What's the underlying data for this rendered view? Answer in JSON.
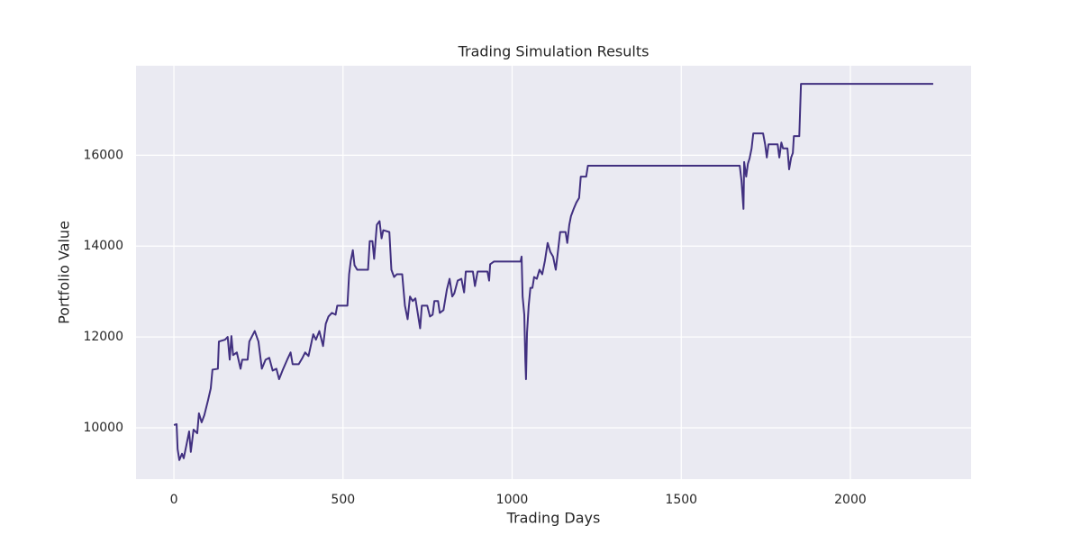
{
  "chart_data": {
    "type": "line",
    "title": "Trading Simulation Results",
    "x_label": "Trading Days",
    "y_label": "Portfolio Value",
    "x": [
      0,
      8,
      11,
      16,
      24,
      29,
      37,
      45,
      50,
      58,
      69,
      74,
      82,
      90,
      101,
      109,
      114,
      130,
      133,
      151,
      159,
      165,
      170,
      175,
      186,
      197,
      202,
      218,
      223,
      239,
      250,
      260,
      271,
      282,
      292,
      303,
      311,
      321,
      335,
      345,
      351,
      369,
      380,
      388,
      398,
      412,
      420,
      430,
      441,
      449,
      457,
      467,
      478,
      483,
      513,
      518,
      523,
      529,
      534,
      542,
      574,
      579,
      587,
      592,
      600,
      608,
      614,
      619,
      637,
      643,
      651,
      659,
      675,
      683,
      691,
      698,
      706,
      714,
      728,
      733,
      749,
      757,
      765,
      770,
      781,
      786,
      797,
      807,
      815,
      823,
      829,
      839,
      850,
      858,
      863,
      884,
      890,
      898,
      927,
      932,
      935,
      946,
      1025,
      1028,
      1031,
      1036,
      1039,
      1041,
      1044,
      1049,
      1054,
      1060,
      1065,
      1073,
      1081,
      1089,
      1097,
      1105,
      1113,
      1121,
      1129,
      1134,
      1142,
      1158,
      1163,
      1169,
      1174,
      1182,
      1190,
      1198,
      1203,
      1219,
      1224,
      1673,
      1678,
      1684,
      1686,
      1692,
      1697,
      1702,
      1708,
      1713,
      1742,
      1748,
      1753,
      1758,
      1785,
      1790,
      1796,
      1801,
      1814,
      1819,
      1825,
      1830,
      1833,
      1849,
      1854,
      2245
    ],
    "values": [
      10060,
      10080,
      9530,
      9290,
      9430,
      9330,
      9620,
      9920,
      9470,
      9960,
      9880,
      10320,
      10120,
      10280,
      10610,
      10870,
      11280,
      11300,
      11900,
      11940,
      12000,
      11500,
      12020,
      11600,
      11660,
      11300,
      11500,
      11500,
      11900,
      12130,
      11900,
      11300,
      11500,
      11540,
      11260,
      11300,
      11070,
      11260,
      11500,
      11660,
      11400,
      11400,
      11540,
      11660,
      11580,
      12060,
      11940,
      12130,
      11800,
      12290,
      12450,
      12530,
      12490,
      12690,
      12690,
      13380,
      13680,
      13910,
      13580,
      13480,
      13480,
      14110,
      14110,
      13720,
      14470,
      14550,
      14170,
      14350,
      14310,
      13480,
      13320,
      13380,
      13380,
      12690,
      12390,
      12890,
      12790,
      12850,
      12190,
      12690,
      12690,
      12450,
      12490,
      12790,
      12790,
      12530,
      12590,
      13040,
      13280,
      12890,
      12960,
      13240,
      13280,
      12980,
      13440,
      13440,
      13120,
      13440,
      13440,
      13240,
      13600,
      13660,
      13660,
      13770,
      12890,
      12490,
      11500,
      11070,
      12090,
      12690,
      13080,
      13080,
      13320,
      13280,
      13480,
      13380,
      13680,
      14070,
      13870,
      13770,
      13480,
      13790,
      14310,
      14310,
      14070,
      14470,
      14660,
      14820,
      14960,
      15060,
      15530,
      15530,
      15770,
      15770,
      15450,
      14820,
      15850,
      15530,
      15810,
      15930,
      16150,
      16480,
      16480,
      16240,
      15950,
      16240,
      16240,
      15950,
      16280,
      16150,
      16150,
      15690,
      15950,
      16050,
      16420,
      16420,
      17570,
      17570
    ],
    "color": "#413080",
    "xlim": [
      -112,
      2357
    ],
    "ylim": [
      8870,
      17970
    ],
    "xticks": [
      0,
      500,
      1000,
      1500,
      2000
    ],
    "yticks": [
      10000,
      12000,
      14000,
      16000
    ],
    "grid": true
  }
}
